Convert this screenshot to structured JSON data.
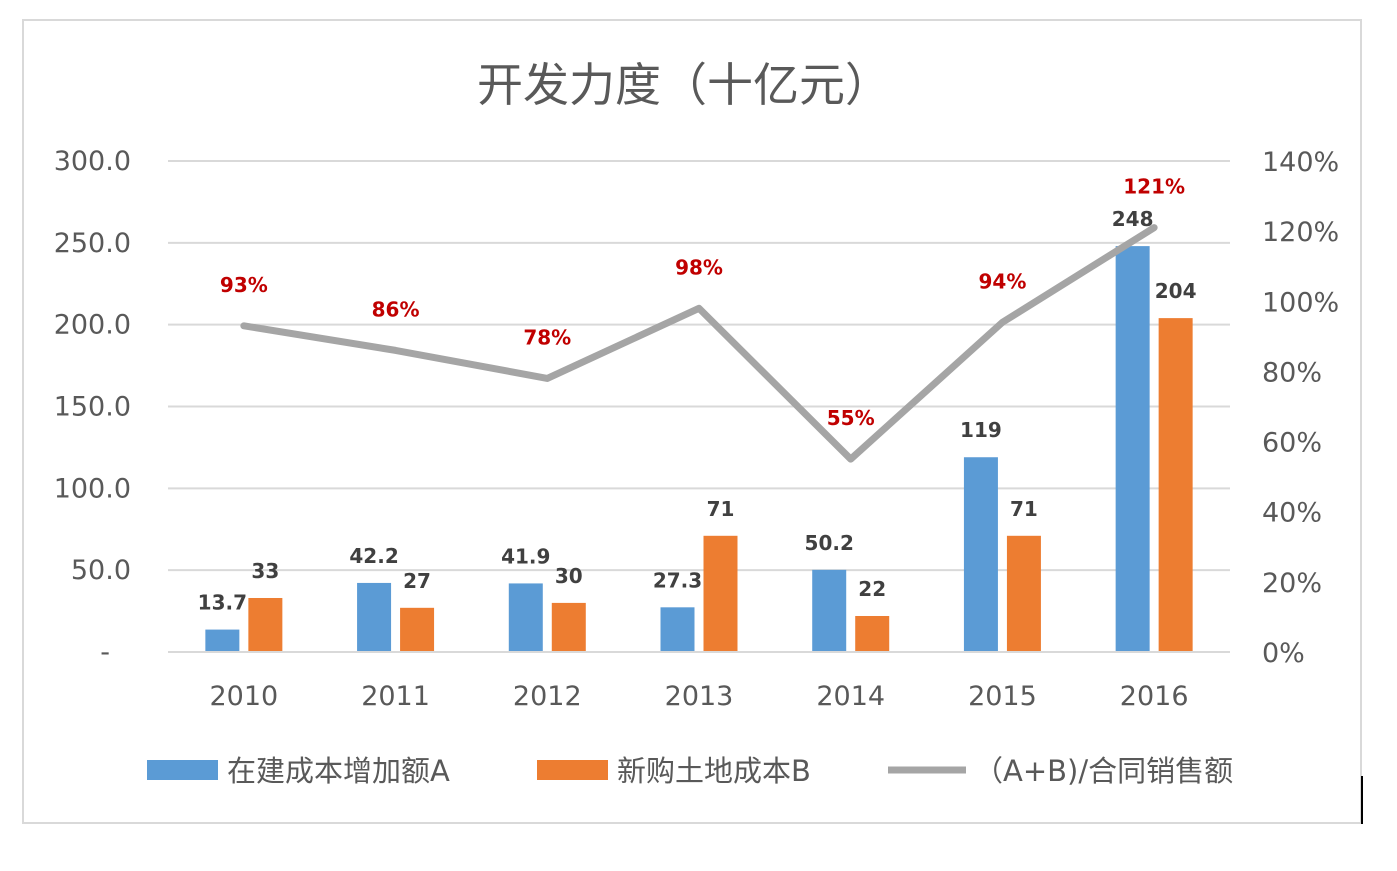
{
  "chart_data": {
    "type": "bar",
    "title": "开发力度（十亿元）",
    "categories": [
      "2010",
      "2011",
      "2012",
      "2013",
      "2014",
      "2015",
      "2016"
    ],
    "series": [
      {
        "name": "在建成本增加额A",
        "type": "bar",
        "axis": "left",
        "color": "#5b9bd5",
        "values": [
          13.7,
          42.2,
          41.9,
          27.3,
          50.2,
          119,
          248
        ],
        "labels": [
          "13.7",
          "42.2",
          "41.9",
          "27.3",
          "50.2",
          "119",
          "248"
        ]
      },
      {
        "name": "新购土地成本B",
        "type": "bar",
        "axis": "left",
        "color": "#ed7d31",
        "values": [
          33,
          27,
          30,
          71,
          22,
          71,
          204
        ],
        "labels": [
          "33",
          "27",
          "30",
          "71",
          "22",
          "71",
          "204"
        ]
      },
      {
        "name": "（A+B)/合同销售额",
        "type": "line",
        "axis": "right",
        "color": "#a5a5a5",
        "values": [
          0.93,
          0.86,
          0.78,
          0.98,
          0.55,
          0.94,
          1.21
        ],
        "labels": [
          "93%",
          "86%",
          "78%",
          "98%",
          "55%",
          "94%",
          "121%"
        ]
      }
    ],
    "y_left": {
      "ylim": [
        0,
        300
      ],
      "ticks": [
        0,
        50,
        100,
        150,
        200,
        250,
        300
      ],
      "tick_labels": [
        "-",
        "50.0",
        "100.0",
        "150.0",
        "200.0",
        "250.0",
        "300.0"
      ]
    },
    "y_right": {
      "ylim": [
        0,
        1.4
      ],
      "ticks": [
        0,
        0.2,
        0.4,
        0.6,
        0.8,
        1.0,
        1.2,
        1.4
      ],
      "tick_labels": [
        "0%",
        "20%",
        "40%",
        "60%",
        "80%",
        "100%",
        "120%",
        "140%"
      ]
    },
    "grid": true,
    "legend": "bottom",
    "label_color": "#404040",
    "pct_label_color": "#c00000"
  }
}
